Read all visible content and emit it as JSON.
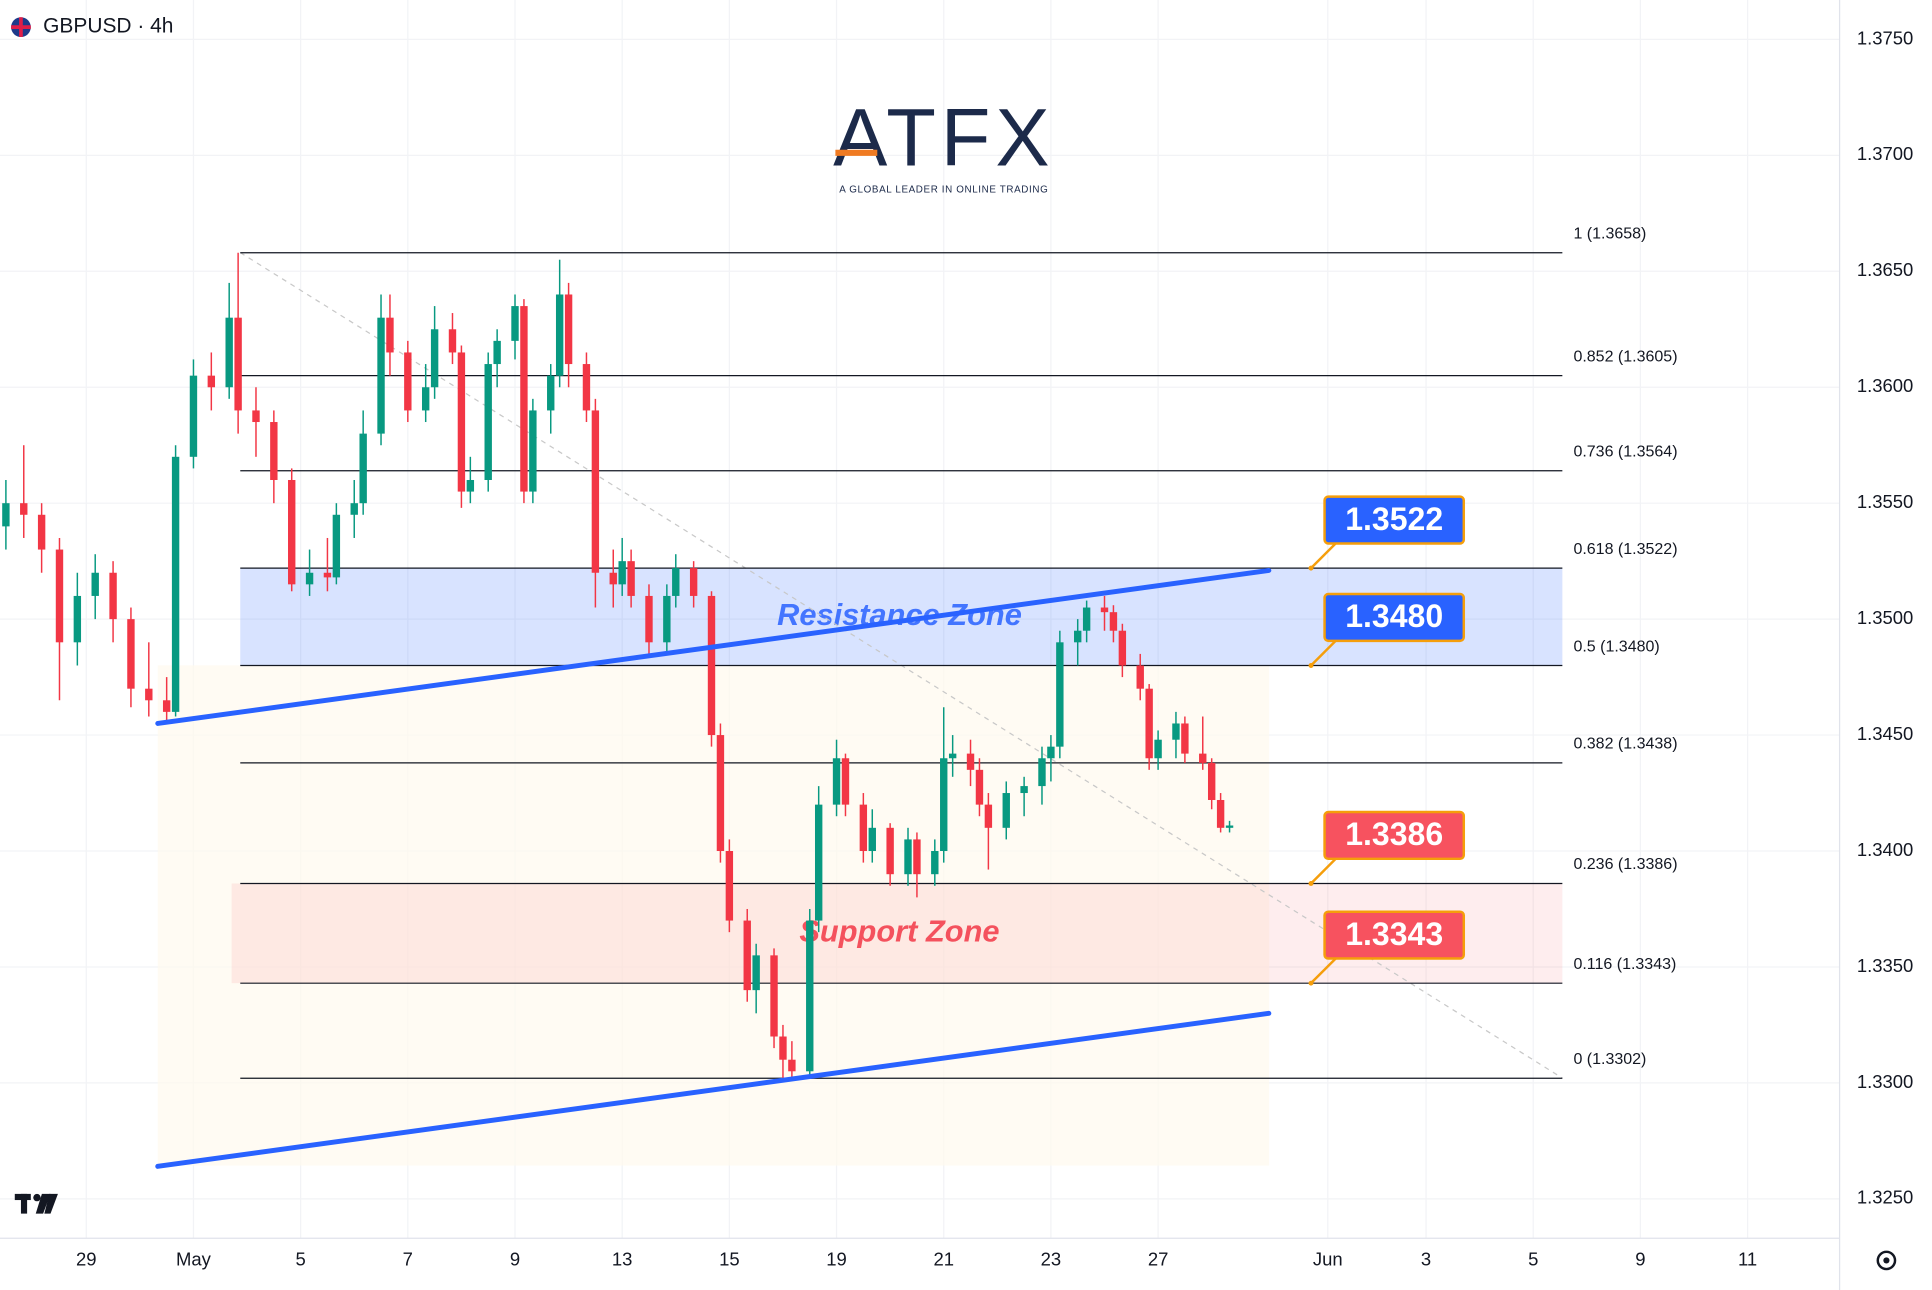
{
  "chart_data": {
    "type": "candlestick",
    "symbol": "GBPUSD · 4h",
    "logo": {
      "name": "ATFX",
      "tagline": "A GLOBAL LEADER IN ONLINE TRADING"
    },
    "up_color": "#089981",
    "down_color": "#f23645",
    "grid": true,
    "xlim": [
      -9.66,
      196.3
    ],
    "ylim": [
      1.3233,
      1.3767
    ],
    "xticks": [
      {
        "value": 0,
        "label": "29"
      },
      {
        "value": 12,
        "label": "May"
      },
      {
        "value": 24,
        "label": "5"
      },
      {
        "value": 36,
        "label": "7"
      },
      {
        "value": 48,
        "label": "9"
      },
      {
        "value": 60,
        "label": "13"
      },
      {
        "value": 72,
        "label": "15"
      },
      {
        "value": 84,
        "label": "19"
      },
      {
        "value": 96,
        "label": "21"
      },
      {
        "value": 108,
        "label": "23"
      },
      {
        "value": 120,
        "label": "27"
      },
      {
        "value": 139,
        "label": "Jun"
      },
      {
        "value": 150,
        "label": "3"
      },
      {
        "value": 162,
        "label": "5"
      },
      {
        "value": 174,
        "label": "9"
      },
      {
        "value": 186,
        "label": "11"
      }
    ],
    "yticks": [
      {
        "value": 1.325,
        "label": "1.3250"
      },
      {
        "value": 1.33,
        "label": "1.3300"
      },
      {
        "value": 1.335,
        "label": "1.3350"
      },
      {
        "value": 1.34,
        "label": "1.3400"
      },
      {
        "value": 1.345,
        "label": "1.3450"
      },
      {
        "value": 1.35,
        "label": "1.3500"
      },
      {
        "value": 1.355,
        "label": "1.3550"
      },
      {
        "value": 1.36,
        "label": "1.3600"
      },
      {
        "value": 1.365,
        "label": "1.3650"
      },
      {
        "value": 1.37,
        "label": "1.3700"
      },
      {
        "value": 1.375,
        "label": "1.3750"
      }
    ],
    "x": [
      -9,
      -7,
      -5,
      -3,
      -1,
      1,
      3,
      5,
      7,
      9,
      10,
      12,
      14,
      16,
      17,
      19,
      21,
      23,
      25,
      27,
      28,
      30,
      31,
      33,
      34,
      36,
      38,
      39,
      41,
      42,
      43,
      45,
      46,
      48,
      49,
      50,
      52,
      53,
      54,
      56,
      57,
      59,
      60,
      61,
      63,
      65,
      66,
      68,
      70,
      71,
      72,
      74,
      75,
      77,
      78,
      79,
      81,
      82,
      84,
      85,
      87,
      88,
      90,
      92,
      93,
      95,
      96,
      97,
      99,
      100,
      101,
      103,
      105,
      107,
      108,
      109,
      111,
      112,
      114,
      115,
      116,
      118,
      119,
      120,
      122,
      123,
      125,
      126,
      127,
      128
    ],
    "open": [
      1.354,
      1.355,
      1.3545,
      1.353,
      1.349,
      1.351,
      1.352,
      1.35,
      1.347,
      1.3465,
      1.346,
      1.357,
      1.3605,
      1.36,
      1.363,
      1.359,
      1.3585,
      1.356,
      1.3515,
      1.352,
      1.3518,
      1.3545,
      1.355,
      1.358,
      1.363,
      1.3615,
      1.359,
      1.36,
      1.3625,
      1.3615,
      1.3555,
      1.356,
      1.361,
      1.362,
      1.3635,
      1.3555,
      1.359,
      1.3605,
      1.364,
      1.361,
      1.359,
      1.352,
      1.3515,
      1.3525,
      1.351,
      1.349,
      1.351,
      1.3522,
      1.351,
      1.345,
      1.34,
      1.337,
      1.334,
      1.3355,
      1.332,
      1.331,
      1.3305,
      1.337,
      1.342,
      1.344,
      1.342,
      1.34,
      1.341,
      1.339,
      1.3405,
      1.339,
      1.34,
      1.344,
      1.3442,
      1.3435,
      1.342,
      1.341,
      1.3425,
      1.3428,
      1.344,
      1.3445,
      1.349,
      1.3495,
      1.3505,
      1.3503,
      1.3495,
      1.348,
      1.347,
      1.344,
      1.3448,
      1.3455,
      1.3442,
      1.3438,
      1.3422,
      1.341
    ],
    "high": [
      1.356,
      1.3575,
      1.355,
      1.3535,
      1.352,
      1.3528,
      1.3525,
      1.3505,
      1.349,
      1.3475,
      1.3575,
      1.3612,
      1.3615,
      1.3645,
      1.3658,
      1.36,
      1.359,
      1.3565,
      1.353,
      1.3535,
      1.355,
      1.356,
      1.359,
      1.364,
      1.364,
      1.362,
      1.361,
      1.3635,
      1.3632,
      1.3618,
      1.357,
      1.3615,
      1.3625,
      1.364,
      1.3638,
      1.3595,
      1.361,
      1.3655,
      1.3645,
      1.3615,
      1.3595,
      1.353,
      1.3535,
      1.353,
      1.3515,
      1.3515,
      1.3528,
      1.3525,
      1.3512,
      1.3455,
      1.3405,
      1.3375,
      1.336,
      1.3358,
      1.3325,
      1.3318,
      1.3375,
      1.3428,
      1.3448,
      1.3442,
      1.3425,
      1.3418,
      1.3412,
      1.341,
      1.3408,
      1.3405,
      1.3462,
      1.345,
      1.3448,
      1.344,
      1.3425,
      1.343,
      1.3432,
      1.3445,
      1.345,
      1.3495,
      1.35,
      1.3508,
      1.351,
      1.3506,
      1.3498,
      1.3485,
      1.3472,
      1.3452,
      1.346,
      1.3458,
      1.3458,
      1.344,
      1.3425,
      1.3413
    ],
    "low": [
      1.353,
      1.3535,
      1.352,
      1.3465,
      1.348,
      1.35,
      1.349,
      1.3462,
      1.3458,
      1.3455,
      1.3458,
      1.3565,
      1.359,
      1.3595,
      1.358,
      1.357,
      1.355,
      1.3512,
      1.351,
      1.3512,
      1.3515,
      1.3535,
      1.3545,
      1.3575,
      1.3605,
      1.3585,
      1.3585,
      1.3595,
      1.361,
      1.3548,
      1.355,
      1.3555,
      1.36,
      1.3612,
      1.355,
      1.355,
      1.358,
      1.36,
      1.36,
      1.3585,
      1.3505,
      1.3505,
      1.351,
      1.3505,
      1.3485,
      1.3485,
      1.3505,
      1.3505,
      1.3445,
      1.3395,
      1.3365,
      1.3335,
      1.333,
      1.3315,
      1.3302,
      1.3302,
      1.3302,
      1.3365,
      1.3415,
      1.3415,
      1.3395,
      1.3395,
      1.3385,
      1.3385,
      1.338,
      1.3385,
      1.3395,
      1.3432,
      1.3428,
      1.3415,
      1.3392,
      1.3405,
      1.3415,
      1.342,
      1.343,
      1.344,
      1.348,
      1.349,
      1.3495,
      1.349,
      1.3475,
      1.3465,
      1.3435,
      1.3435,
      1.344,
      1.3438,
      1.3435,
      1.3418,
      1.3408,
      1.3408
    ],
    "close": [
      1.355,
      1.3545,
      1.353,
      1.349,
      1.351,
      1.352,
      1.35,
      1.347,
      1.3465,
      1.346,
      1.357,
      1.3605,
      1.36,
      1.363,
      1.359,
      1.3585,
      1.356,
      1.3515,
      1.352,
      1.3518,
      1.3545,
      1.355,
      1.358,
      1.363,
      1.3615,
      1.359,
      1.36,
      1.3625,
      1.3615,
      1.3555,
      1.356,
      1.361,
      1.362,
      1.3635,
      1.3555,
      1.359,
      1.3605,
      1.364,
      1.361,
      1.359,
      1.352,
      1.3515,
      1.3525,
      1.351,
      1.349,
      1.351,
      1.3522,
      1.351,
      1.345,
      1.34,
      1.337,
      1.334,
      1.3355,
      1.332,
      1.331,
      1.3305,
      1.337,
      1.342,
      1.344,
      1.342,
      1.34,
      1.341,
      1.339,
      1.3405,
      1.339,
      1.34,
      1.344,
      1.3442,
      1.3435,
      1.342,
      1.341,
      1.3425,
      1.3428,
      1.344,
      1.3445,
      1.349,
      1.3495,
      1.3505,
      1.3503,
      1.3495,
      1.348,
      1.347,
      1.344,
      1.3448,
      1.3455,
      1.3442,
      1.3438,
      1.3422,
      1.341,
      1.3411
    ],
    "fib_levels": [
      {
        "value": 1.3658,
        "label": "1 (1.3658)"
      },
      {
        "value": 1.3605,
        "label": "0.852 (1.3605)"
      },
      {
        "value": 1.3564,
        "label": "0.736 (1.3564)"
      },
      {
        "value": 1.3522,
        "label": "0.618 (1.3522)"
      },
      {
        "value": 1.348,
        "label": "0.5 (1.3480)"
      },
      {
        "value": 1.3438,
        "label": "0.382 (1.3438)"
      },
      {
        "value": 1.3386,
        "label": "0.236 (1.3386)"
      },
      {
        "value": 1.3343,
        "label": "0.116 (1.3343)"
      },
      {
        "value": 1.3302,
        "label": "0 (1.3302)"
      }
    ],
    "zones": [
      {
        "label": "Resistance Zone",
        "range": [
          1.348,
          1.3522
        ],
        "color": "#2962ff"
      },
      {
        "label": "Support Zone",
        "range": [
          1.3343,
          1.3386
        ],
        "color": "#f23645"
      }
    ],
    "trendlines": [
      {
        "x": [
          8,
          132.4
        ],
        "y": [
          1.3455,
          1.3521
        ],
        "color": "#2962ff"
      },
      {
        "x": [
          8,
          132.4
        ],
        "y": [
          1.3264,
          1.333
        ],
        "color": "#2962ff"
      }
    ],
    "price_labels": [
      {
        "value": 1.3522,
        "label": "1.3522",
        "color": "#2962ff"
      },
      {
        "value": 1.348,
        "label": "1.3480",
        "color": "#2962ff"
      },
      {
        "value": 1.3386,
        "label": "1.3386",
        "color": "#f7525f"
      },
      {
        "value": 1.3343,
        "label": "1.3343",
        "color": "#f7525f"
      }
    ]
  }
}
